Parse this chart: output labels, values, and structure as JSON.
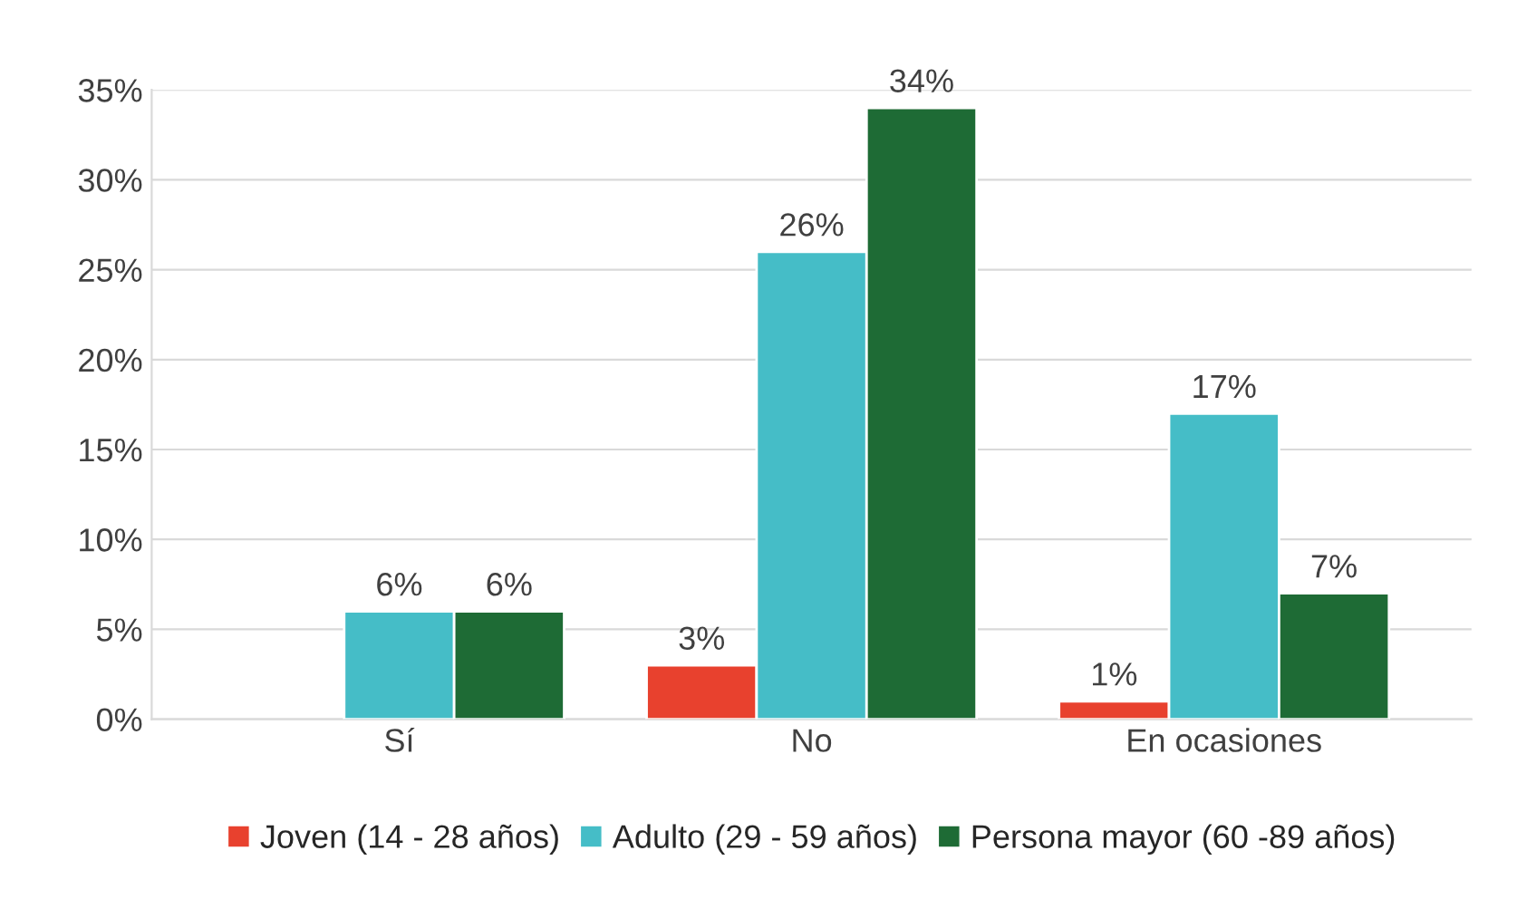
{
  "chart_data": {
    "type": "bar",
    "categories": [
      "Sí",
      "No",
      "En ocasiones"
    ],
    "series": [
      {
        "name": "Joven (14 - 28 años)",
        "color": "#e8412e",
        "values": [
          null,
          3,
          1
        ],
        "value_labels": [
          null,
          "3%",
          "1%"
        ]
      },
      {
        "name": "Adulto (29 - 59 años)",
        "color": "#45bdc7",
        "values": [
          6,
          26,
          17
        ],
        "value_labels": [
          "6%",
          "26%",
          "17%"
        ]
      },
      {
        "name": "Persona mayor (60 -89 años)",
        "color": "#1e6b35",
        "values": [
          6,
          34,
          7
        ],
        "value_labels": [
          "6%",
          "34%",
          "7%"
        ]
      }
    ],
    "ylim": [
      0,
      35
    ],
    "yticks": [
      {
        "value": 0,
        "label": "0%"
      },
      {
        "value": 5,
        "label": "5%"
      },
      {
        "value": 10,
        "label": "10%"
      },
      {
        "value": 15,
        "label": "15%"
      },
      {
        "value": 20,
        "label": "20%"
      },
      {
        "value": 25,
        "label": "25%"
      },
      {
        "value": 30,
        "label": "30%"
      },
      {
        "value": 35,
        "label": "35%"
      }
    ],
    "grid": "y",
    "legend": "bottom"
  }
}
